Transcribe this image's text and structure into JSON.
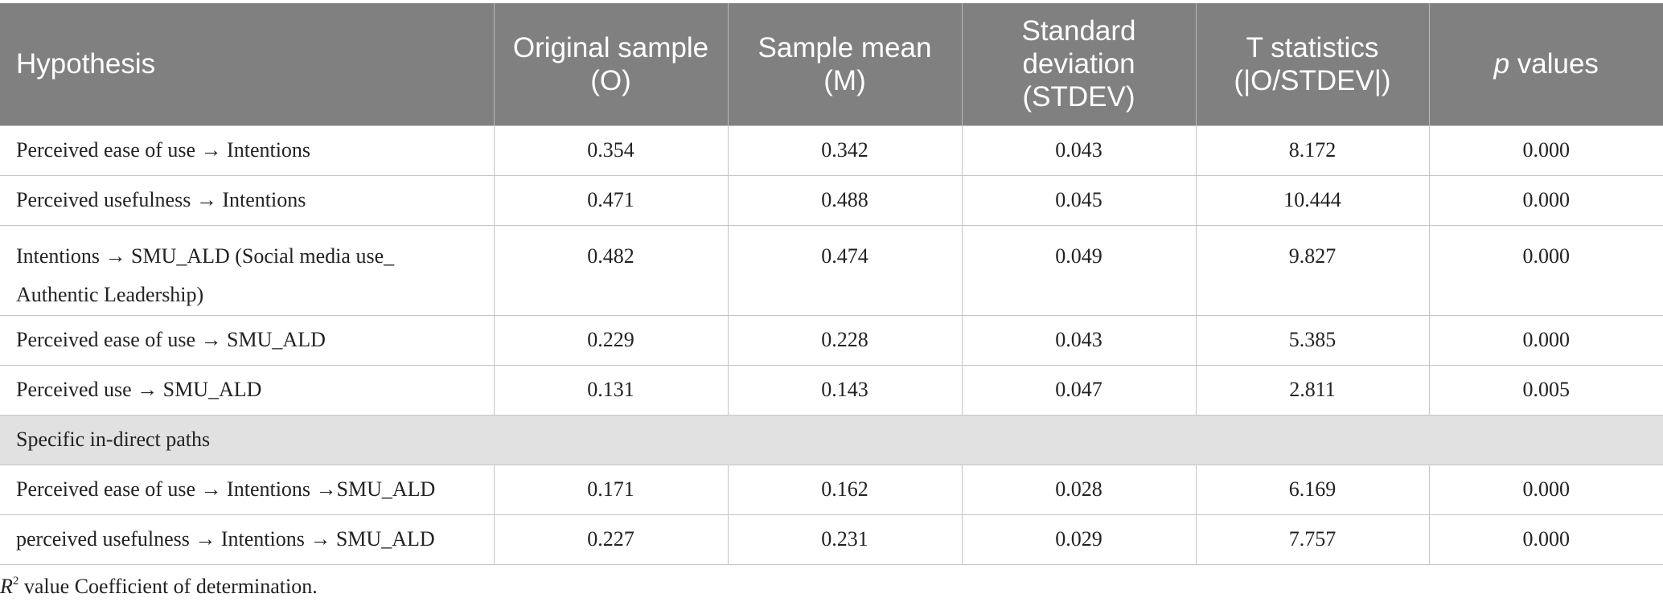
{
  "table": {
    "headers": [
      {
        "text": "Hypothesis"
      },
      {
        "text": "Original sample (O)"
      },
      {
        "text": "Sample mean (M)"
      },
      {
        "text": "Standard deviation (STDEV)"
      },
      {
        "text": "T statistics (|O/STDEV|)"
      },
      {
        "italic": "p",
        "text": " values"
      }
    ],
    "rows": [
      {
        "hypothesis": "Perceived ease of use → Intentions",
        "original_sample": "0.354",
        "sample_mean": "0.342",
        "std_dev": "0.043",
        "t_stat": "8.172",
        "p_value": "0.000"
      },
      {
        "hypothesis": "Perceived usefulness → Intentions",
        "original_sample": "0.471",
        "sample_mean": "0.488",
        "std_dev": "0.045",
        "t_stat": "10.444",
        "p_value": "0.000"
      },
      {
        "hypothesis": "Intentions → SMU_ALD (Social media use_ Authentic Leadership)",
        "original_sample": "0.482",
        "sample_mean": "0.474",
        "std_dev": "0.049",
        "t_stat": "9.827",
        "p_value": "0.000"
      },
      {
        "hypothesis": "Perceived ease of use → SMU_ALD",
        "original_sample": "0.229",
        "sample_mean": "0.228",
        "std_dev": "0.043",
        "t_stat": "5.385",
        "p_value": "0.000"
      },
      {
        "hypothesis": "Perceived use → SMU_ALD",
        "original_sample": "0.131",
        "sample_mean": "0.143",
        "std_dev": "0.047",
        "t_stat": "2.811",
        "p_value": "0.005"
      }
    ],
    "section_label": "Specific in-direct paths",
    "indirect_rows": [
      {
        "hypothesis": "Perceived ease of use → Intentions →SMU_ALD",
        "original_sample": "0.171",
        "sample_mean": "0.162",
        "std_dev": "0.028",
        "t_stat": "6.169",
        "p_value": "0.000"
      },
      {
        "hypothesis": "perceived usefulness → Intentions → SMU_ALD",
        "original_sample": "0.227",
        "sample_mean": "0.231",
        "std_dev": "0.029",
        "t_stat": "7.757",
        "p_value": "0.000"
      }
    ]
  },
  "footnote": {
    "symbol": "R",
    "superscript": "2",
    "text": " value Coefficient of determination."
  }
}
